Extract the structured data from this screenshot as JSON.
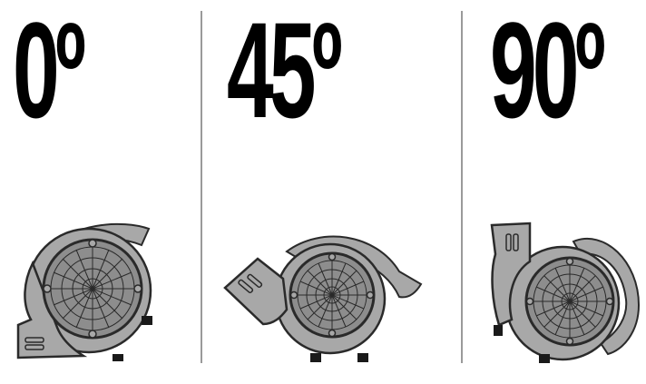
{
  "positions": [
    {
      "label": "0º",
      "position_icon": "air-mover-0deg-icon"
    },
    {
      "label": "45º",
      "position_icon": "air-mover-45deg-icon"
    },
    {
      "label": "90º",
      "position_icon": "air-mover-90deg-icon"
    }
  ],
  "colors": {
    "text": "#000000",
    "body_fill": "#a8a8a8",
    "body_stroke": "#2a2a2a",
    "grille_fill": "#8d8d8d",
    "divider": "#9a9a9a",
    "background": "#ffffff"
  }
}
